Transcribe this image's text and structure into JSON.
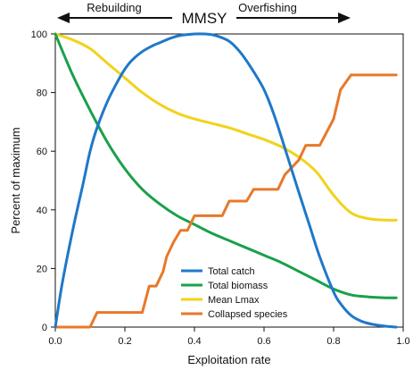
{
  "chart_data": {
    "type": "line",
    "title": "MMSY",
    "annotations": {
      "left_arrow_label": "Rebuilding",
      "right_arrow_label": "Overfishing"
    },
    "xlabel": "Exploitation rate",
    "ylabel": "Percent of maximum",
    "xlim": [
      0,
      1
    ],
    "ylim": [
      0,
      100
    ],
    "x_ticks": [
      {
        "value": 0,
        "label": "0.0"
      },
      {
        "value": 0.2,
        "label": "0.2"
      },
      {
        "value": 0.4,
        "label": "0.4"
      },
      {
        "value": 0.6,
        "label": "0.6"
      },
      {
        "value": 0.8,
        "label": "0.8"
      },
      {
        "value": 1.0,
        "label": "1.0"
      }
    ],
    "y_ticks": [
      {
        "value": 0,
        "label": "0"
      },
      {
        "value": 20,
        "label": "20"
      },
      {
        "value": 40,
        "label": "40"
      },
      {
        "value": 60,
        "label": "60"
      },
      {
        "value": 80,
        "label": "80"
      },
      {
        "value": 100,
        "label": "100"
      }
    ],
    "grid": false,
    "legend_position": "bottom-center",
    "series": [
      {
        "name": "Total catch",
        "color": "#1f78c8",
        "x": [
          0,
          0.02,
          0.05,
          0.08,
          0.1,
          0.12,
          0.15,
          0.18,
          0.2,
          0.22,
          0.25,
          0.28,
          0.3,
          0.33,
          0.36,
          0.4,
          0.43,
          0.46,
          0.5,
          0.53,
          0.56,
          0.6,
          0.63,
          0.66,
          0.7,
          0.73,
          0.76,
          0.8,
          0.82,
          0.85,
          0.88,
          0.91,
          0.95,
          0.98
        ],
        "y": [
          0,
          15,
          33,
          49,
          60,
          68,
          77,
          84,
          88,
          91,
          94,
          96,
          97,
          98.5,
          99.5,
          100,
          100,
          99.5,
          97.5,
          94,
          89,
          81,
          72,
          61,
          46,
          35,
          24,
          12,
          8,
          4,
          2,
          1,
          0.3,
          0
        ]
      },
      {
        "name": "Total biomass",
        "color": "#1aa04a",
        "x": [
          0,
          0.05,
          0.1,
          0.15,
          0.2,
          0.25,
          0.3,
          0.35,
          0.4,
          0.45,
          0.5,
          0.55,
          0.6,
          0.65,
          0.7,
          0.75,
          0.8,
          0.85,
          0.9,
          0.95,
          0.98
        ],
        "y": [
          100,
          86,
          74,
          63,
          54,
          47,
          42,
          38,
          35,
          32,
          29.5,
          27,
          24.5,
          22,
          19,
          16,
          13,
          11,
          10.3,
          10,
          10
        ]
      },
      {
        "name": "Mean Lmax",
        "color": "#f2d21b",
        "x": [
          0,
          0.05,
          0.1,
          0.15,
          0.2,
          0.25,
          0.3,
          0.35,
          0.4,
          0.45,
          0.5,
          0.55,
          0.6,
          0.65,
          0.7,
          0.75,
          0.8,
          0.85,
          0.9,
          0.95,
          0.98
        ],
        "y": [
          100,
          98,
          95,
          90,
          85,
          80,
          76,
          73,
          71,
          69.5,
          68,
          66,
          64,
          61.5,
          58,
          53,
          45,
          39,
          37,
          36.5,
          36.5
        ]
      },
      {
        "name": "Collapsed species",
        "color": "#e8782a",
        "x": [
          0,
          0.1,
          0.12,
          0.2,
          0.25,
          0.27,
          0.29,
          0.31,
          0.32,
          0.34,
          0.36,
          0.38,
          0.4,
          0.42,
          0.48,
          0.5,
          0.55,
          0.57,
          0.6,
          0.64,
          0.66,
          0.7,
          0.72,
          0.76,
          0.8,
          0.82,
          0.85,
          0.88,
          0.98
        ],
        "y": [
          0,
          0,
          5,
          5,
          5,
          14,
          14,
          19,
          24,
          29,
          33,
          33,
          38,
          38,
          38,
          43,
          43,
          47,
          47,
          47,
          52,
          57,
          62,
          62,
          71,
          81,
          86,
          86,
          86
        ]
      }
    ]
  }
}
